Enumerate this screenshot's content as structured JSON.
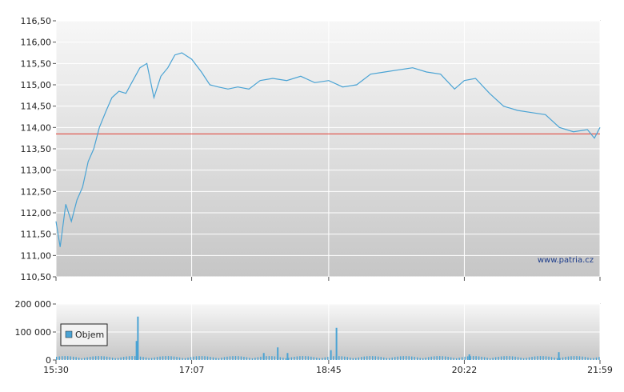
{
  "watermark": "www.patria.cz",
  "colors": {
    "price_line": "#4aa3d4",
    "reference_line": "#e03c31",
    "volume_bar": "#4aa3d4"
  },
  "chart_data": [
    {
      "type": "line",
      "name": "price",
      "ylim": [
        110.5,
        116.5
      ],
      "y_ticks": [
        "110,50",
        "111,00",
        "111,50",
        "112,00",
        "112,50",
        "113,00",
        "113,50",
        "114,00",
        "114,50",
        "115,00",
        "115,50",
        "116,00",
        "116,50"
      ],
      "reference_value": 113.85,
      "grid": true,
      "x": [
        "15:30",
        "15:33",
        "15:37",
        "15:41",
        "15:45",
        "15:49",
        "15:53",
        "15:57",
        "16:01",
        "16:06",
        "16:10",
        "16:15",
        "16:20",
        "16:25",
        "16:30",
        "16:35",
        "16:40",
        "16:45",
        "16:50",
        "16:55",
        "17:00",
        "17:07",
        "17:14",
        "17:20",
        "17:26",
        "17:33",
        "17:40",
        "17:48",
        "17:56",
        "18:05",
        "18:15",
        "18:25",
        "18:35",
        "18:45",
        "18:55",
        "19:05",
        "19:15",
        "19:25",
        "19:35",
        "19:45",
        "19:55",
        "20:05",
        "20:15",
        "20:22",
        "20:30",
        "20:40",
        "20:50",
        "21:00",
        "21:10",
        "21:20",
        "21:30",
        "21:40",
        "21:50",
        "21:55",
        "21:59"
      ],
      "values": [
        111.8,
        111.2,
        112.2,
        111.8,
        112.3,
        112.6,
        113.2,
        113.5,
        114.0,
        114.4,
        114.7,
        114.85,
        114.8,
        115.1,
        115.4,
        115.5,
        114.7,
        115.2,
        115.4,
        115.7,
        115.75,
        115.6,
        115.3,
        115.0,
        114.95,
        114.9,
        114.95,
        114.9,
        115.1,
        115.15,
        115.1,
        115.2,
        115.05,
        115.1,
        114.95,
        115.0,
        115.25,
        115.3,
        115.35,
        115.4,
        115.3,
        115.25,
        114.9,
        115.1,
        115.15,
        114.8,
        114.5,
        114.4,
        114.35,
        114.3,
        114.0,
        113.9,
        113.95,
        113.75,
        114.0
      ]
    },
    {
      "type": "bar",
      "name": "volume",
      "ylim": [
        0,
        200000
      ],
      "y_ticks": [
        "0",
        "100 000",
        "200 000"
      ],
      "x_ticks": [
        "15:30",
        "17:07",
        "18:45",
        "20:22",
        "21:59"
      ],
      "legend": {
        "label": "Objem",
        "position": "top-left"
      },
      "spikes": [
        {
          "time": "16:28",
          "value": 155000
        },
        {
          "time": "16:27",
          "value": 68000
        },
        {
          "time": "18:50",
          "value": 115000
        },
        {
          "time": "18:46",
          "value": 35000
        },
        {
          "time": "18:08",
          "value": 45000
        },
        {
          "time": "17:58",
          "value": 25000
        },
        {
          "time": "18:15",
          "value": 25000
        },
        {
          "time": "20:25",
          "value": 20000
        },
        {
          "time": "21:29",
          "value": 28000
        }
      ],
      "baseline": 10000
    }
  ]
}
